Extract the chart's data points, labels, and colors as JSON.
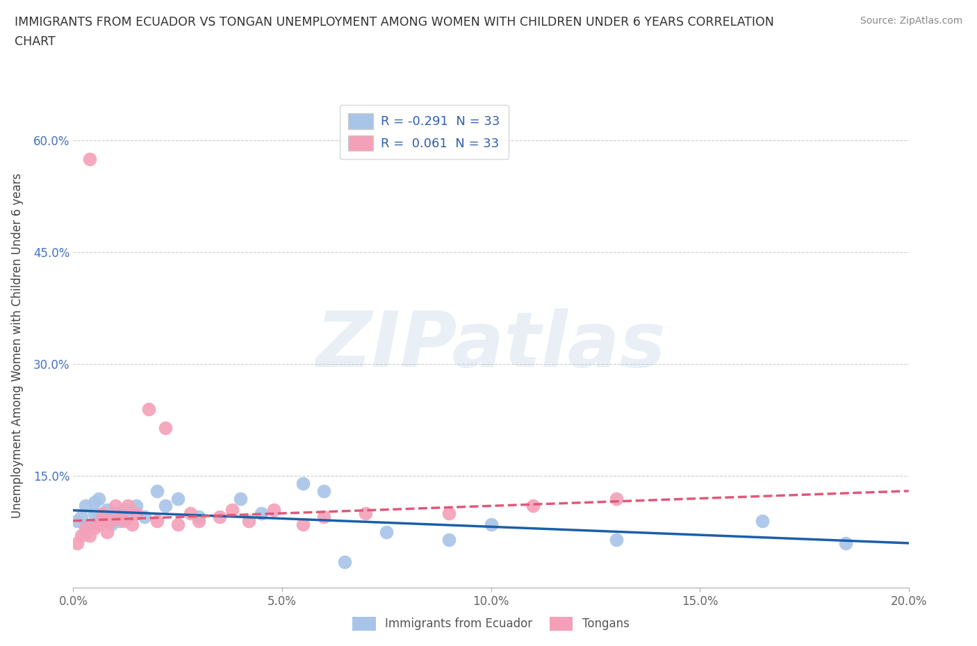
{
  "title_line1": "IMMIGRANTS FROM ECUADOR VS TONGAN UNEMPLOYMENT AMONG WOMEN WITH CHILDREN UNDER 6 YEARS CORRELATION",
  "title_line2": "CHART",
  "source": "Source: ZipAtlas.com",
  "ylabel": "Unemployment Among Women with Children Under 6 years",
  "xlim": [
    0.0,
    0.2
  ],
  "ylim": [
    0.0,
    0.65
  ],
  "xticks": [
    0.0,
    0.05,
    0.1,
    0.15,
    0.2
  ],
  "yticks": [
    0.15,
    0.3,
    0.45,
    0.6
  ],
  "ytick_labels": [
    "15.0%",
    "30.0%",
    "45.0%",
    "60.0%"
  ],
  "xtick_labels": [
    "0.0%",
    "5.0%",
    "10.0%",
    "15.0%",
    "20.0%"
  ],
  "watermark": "ZIPatlas",
  "R_ecuador": -0.291,
  "R_tongan": 0.061,
  "N": 33,
  "color_ecuador": "#a8c4e8",
  "color_tongan": "#f4a0b8",
  "color_line_ecuador": "#1a5fa8",
  "color_line_tongan": "#e05878",
  "ecuador_x": [
    0.001,
    0.002,
    0.003,
    0.003,
    0.004,
    0.005,
    0.005,
    0.006,
    0.006,
    0.007,
    0.008,
    0.009,
    0.01,
    0.011,
    0.012,
    0.013,
    0.015,
    0.017,
    0.02,
    0.022,
    0.025,
    0.03,
    0.04,
    0.045,
    0.055,
    0.06,
    0.065,
    0.075,
    0.09,
    0.1,
    0.13,
    0.165,
    0.185
  ],
  "ecuador_y": [
    0.09,
    0.095,
    0.075,
    0.11,
    0.085,
    0.1,
    0.115,
    0.095,
    0.12,
    0.09,
    0.105,
    0.085,
    0.1,
    0.09,
    0.105,
    0.095,
    0.11,
    0.095,
    0.13,
    0.11,
    0.12,
    0.095,
    0.12,
    0.1,
    0.14,
    0.13,
    0.035,
    0.075,
    0.065,
    0.085,
    0.065,
    0.09,
    0.06
  ],
  "tongan_x": [
    0.001,
    0.002,
    0.003,
    0.004,
    0.004,
    0.005,
    0.006,
    0.007,
    0.007,
    0.008,
    0.009,
    0.01,
    0.011,
    0.012,
    0.013,
    0.014,
    0.015,
    0.018,
    0.02,
    0.022,
    0.025,
    0.028,
    0.03,
    0.035,
    0.038,
    0.042,
    0.048,
    0.055,
    0.06,
    0.07,
    0.09,
    0.11,
    0.13
  ],
  "tongan_y": [
    0.06,
    0.07,
    0.08,
    0.575,
    0.07,
    0.08,
    0.085,
    0.1,
    0.09,
    0.075,
    0.09,
    0.11,
    0.095,
    0.09,
    0.11,
    0.085,
    0.1,
    0.24,
    0.09,
    0.215,
    0.085,
    0.1,
    0.09,
    0.095,
    0.105,
    0.09,
    0.105,
    0.085,
    0.095,
    0.1,
    0.1,
    0.11,
    0.12
  ],
  "line_ecu_x0": 0.0,
  "line_ecu_y0": 0.104,
  "line_ecu_x1": 0.2,
  "line_ecu_y1": 0.06,
  "line_ton_x0": 0.0,
  "line_ton_y0": 0.09,
  "line_ton_x1": 0.2,
  "line_ton_y1": 0.13
}
